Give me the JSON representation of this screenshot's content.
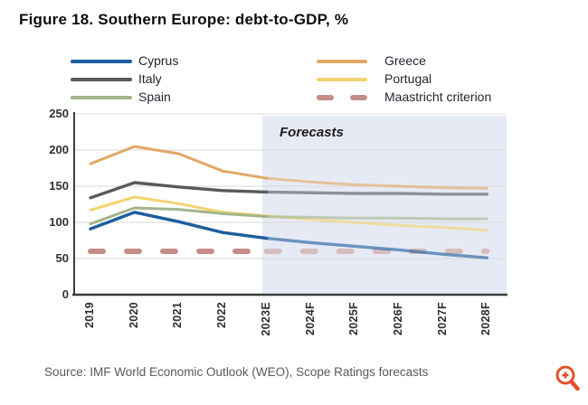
{
  "source": "Source: IMF World Economic Outlook (WEO), Scope Ratings forecasts",
  "colors": {
    "forecast_shade": "#e6eaf4",
    "gridline": "#d9d9d9",
    "axis": "#3d3d3d",
    "zoom_icon": "#e2512c"
  },
  "icons": {
    "zoom_in": "magnifier-plus-icon"
  },
  "legend": {
    "columns": [
      [
        "Cyprus",
        "Italy",
        "Spain"
      ],
      [
        "Greece",
        "Portugal",
        "Maastricht criterion"
      ]
    ]
  },
  "chart_data": {
    "type": "line",
    "title": "Figure 18. Southern Europe: debt-to-GDP, %",
    "ylabel": "debt-to-GDP, %",
    "forecast_label": "Forecasts",
    "categories": [
      "2019",
      "2020",
      "2021",
      "2022",
      "2023E",
      "2024F",
      "2025F",
      "2026F",
      "2027F",
      "2028F"
    ],
    "ylim": [
      0,
      250
    ],
    "yticks": [
      0,
      50,
      100,
      150,
      200,
      250
    ],
    "grid": true,
    "legend_position": "top",
    "forecast_start_category": "2023E",
    "series": [
      {
        "name": "Cyprus",
        "color": "#1d5e9e",
        "style": "solid",
        "values": [
          91,
          114,
          101,
          86,
          78,
          72,
          67,
          62,
          56,
          51
        ]
      },
      {
        "name": "Italy",
        "color": "#58595c",
        "style": "solid",
        "values": [
          134,
          155,
          149,
          144,
          142,
          141,
          140,
          140,
          139,
          139
        ]
      },
      {
        "name": "Spain",
        "color": "#a2b48c",
        "style": "solid",
        "values": [
          98,
          120,
          118,
          112,
          108,
          107,
          106,
          106,
          105,
          105
        ]
      },
      {
        "name": "Greece",
        "color": "#e2a765",
        "style": "solid",
        "values": [
          181,
          205,
          195,
          171,
          161,
          156,
          152,
          150,
          148,
          147
        ]
      },
      {
        "name": "Portugal",
        "color": "#f2d36e",
        "style": "solid",
        "values": [
          117,
          135,
          126,
          114,
          109,
          104,
          100,
          96,
          93,
          89
        ]
      },
      {
        "name": "Maastricht criterion",
        "color": "#c48e86",
        "style": "dashed",
        "values": [
          60,
          60,
          60,
          60,
          60,
          60,
          60,
          60,
          60,
          60
        ]
      }
    ]
  }
}
